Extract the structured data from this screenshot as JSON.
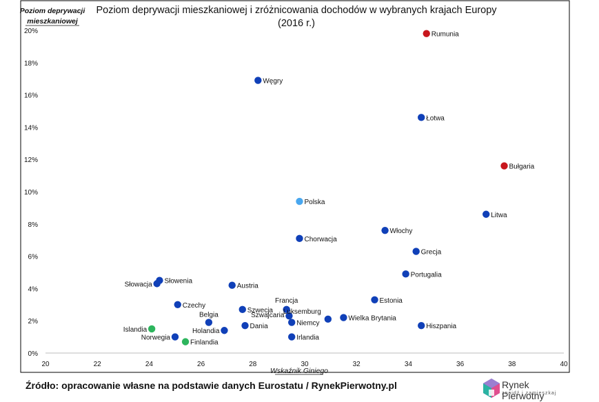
{
  "chart_data": {
    "type": "scatter",
    "title": "Poziom deprywacji mieszkaniowej i zróżnicowania dochodów w wybranych krajach Europy",
    "subtitle": "(2016 r.)",
    "ylabel_line1": "Poziom deprywacji",
    "ylabel_line2": "mieszkaniowej",
    "xlabel": "Wskaźnik Giniego",
    "xlim": [
      20,
      40
    ],
    "ylim": [
      0,
      20
    ],
    "x_ticks": [
      "20",
      "22",
      "24",
      "26",
      "28",
      "30",
      "32",
      "34",
      "36",
      "38",
      "40"
    ],
    "y_ticks": [
      "0%",
      "2%",
      "4%",
      "6%",
      "8%",
      "10%",
      "12%",
      "14%",
      "16%",
      "18%",
      "20%"
    ],
    "colors": {
      "default": "#1040b8",
      "highlight": "#49a7ef",
      "high": "#c8161d",
      "low": "#2db55d"
    },
    "points": [
      {
        "label": "Rumunia",
        "x": 34.7,
        "y": 19.8,
        "color": "high"
      },
      {
        "label": "Węgry",
        "x": 28.2,
        "y": 16.9,
        "color": "default"
      },
      {
        "label": "Łotwa",
        "x": 34.5,
        "y": 14.6,
        "color": "default"
      },
      {
        "label": "Bułgaria",
        "x": 37.7,
        "y": 11.6,
        "color": "high"
      },
      {
        "label": "Polska",
        "x": 29.8,
        "y": 9.4,
        "color": "highlight"
      },
      {
        "label": "Litwa",
        "x": 37.0,
        "y": 8.6,
        "color": "default"
      },
      {
        "label": "Włochy",
        "x": 33.1,
        "y": 7.6,
        "color": "default"
      },
      {
        "label": "Chorwacja",
        "x": 29.8,
        "y": 7.1,
        "color": "default"
      },
      {
        "label": "Grecja",
        "x": 34.3,
        "y": 6.3,
        "color": "default"
      },
      {
        "label": "Portugalia",
        "x": 33.9,
        "y": 4.9,
        "color": "default"
      },
      {
        "label": "Słowenia",
        "x": 24.4,
        "y": 4.5,
        "color": "default"
      },
      {
        "label": "Słowacja",
        "x": 24.3,
        "y": 4.3,
        "color": "default"
      },
      {
        "label": "Austria",
        "x": 27.2,
        "y": 4.2,
        "color": "default"
      },
      {
        "label": "Estonia",
        "x": 32.7,
        "y": 3.3,
        "color": "default"
      },
      {
        "label": "Czechy",
        "x": 25.1,
        "y": 3.0,
        "color": "default"
      },
      {
        "label": "Francja",
        "x": 29.3,
        "y": 2.7,
        "color": "default"
      },
      {
        "label": "Szwecja",
        "x": 27.6,
        "y": 2.7,
        "color": "default"
      },
      {
        "label": "Luksemburg",
        "x": 30.9,
        "y": 2.1,
        "color": "default"
      },
      {
        "label": "Szwajcaria",
        "x": 29.4,
        "y": 2.3,
        "color": "default"
      },
      {
        "label": "Wielka Brytania",
        "x": 31.5,
        "y": 2.2,
        "color": "default"
      },
      {
        "label": "Belgia",
        "x": 26.3,
        "y": 1.9,
        "color": "default"
      },
      {
        "label": "Niemcy",
        "x": 29.5,
        "y": 1.9,
        "color": "default"
      },
      {
        "label": "Dania",
        "x": 27.7,
        "y": 1.7,
        "color": "default"
      },
      {
        "label": "Hiszpania",
        "x": 34.5,
        "y": 1.7,
        "color": "default"
      },
      {
        "label": "Islandia",
        "x": 24.1,
        "y": 1.5,
        "color": "low"
      },
      {
        "label": "Holandia",
        "x": 26.9,
        "y": 1.4,
        "color": "default"
      },
      {
        "label": "Irlandia",
        "x": 29.5,
        "y": 1.0,
        "color": "default"
      },
      {
        "label": "Norwegia",
        "x": 25.0,
        "y": 1.0,
        "color": "default"
      },
      {
        "label": "Finlandia",
        "x": 25.4,
        "y": 0.7,
        "color": "low"
      }
    ]
  },
  "footer": {
    "source": "Źródło: opracowanie własne na podstawie danych Eurostatu / RynekPierwotny.pl",
    "logo_name": "Rynek Pierwotny",
    "logo_tagline": "znajdź i zamieszkaj"
  }
}
